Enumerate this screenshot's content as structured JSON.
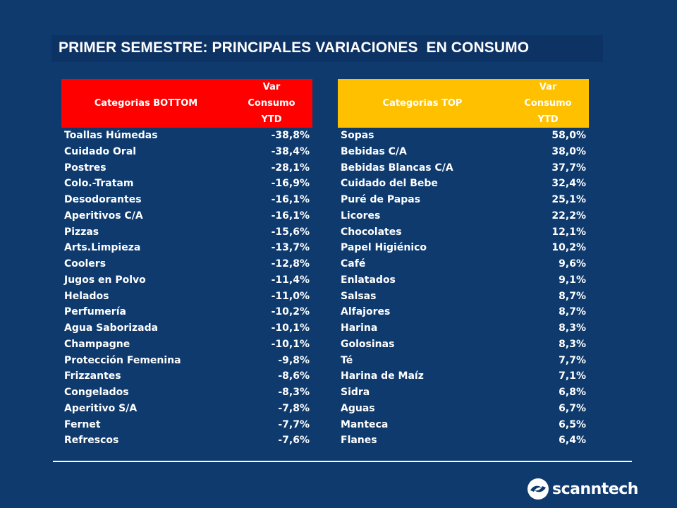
{
  "title": "PRIMER SEMESTRE: PRINCIPALES VARIACIONES  EN CONSUMO",
  "colors": {
    "background": "#0e3a6e",
    "bottom_header": "#ff0000",
    "top_header": "#ffc000"
  },
  "bottom": {
    "header_name": "Categorias BOTTOM",
    "header_var": [
      "Var",
      "Consumo",
      "YTD"
    ],
    "rows": [
      {
        "name": "Toallas Húmedas",
        "value": "-38,8%"
      },
      {
        "name": "Cuidado Oral",
        "value": "-38,4%"
      },
      {
        "name": "Postres",
        "value": "-28,1%"
      },
      {
        "name": "Colo.-Tratam",
        "value": "-16,9%"
      },
      {
        "name": "Desodorantes",
        "value": "-16,1%"
      },
      {
        "name": "Aperitivos C/A",
        "value": "-16,1%"
      },
      {
        "name": "Pizzas",
        "value": "-15,6%"
      },
      {
        "name": "Arts.Limpieza",
        "value": "-13,7%"
      },
      {
        "name": "Coolers",
        "value": "-12,8%"
      },
      {
        "name": "Jugos en Polvo",
        "value": "-11,4%"
      },
      {
        "name": "Helados",
        "value": "-11,0%"
      },
      {
        "name": "Perfumería",
        "value": "-10,2%"
      },
      {
        "name": "Agua Saborizada",
        "value": "-10,1%"
      },
      {
        "name": "Champagne",
        "value": "-10,1%"
      },
      {
        "name": "Protección Femenina",
        "value": "-9,8%"
      },
      {
        "name": "Frizzantes",
        "value": "-8,6%"
      },
      {
        "name": "Congelados",
        "value": "-8,3%"
      },
      {
        "name": "Aperitivo S/A",
        "value": "-7,8%"
      },
      {
        "name": "Fernet",
        "value": "-7,7%"
      },
      {
        "name": "Refrescos",
        "value": "-7,6%"
      }
    ]
  },
  "top": {
    "header_name": "Categorias TOP",
    "header_var": [
      "Var",
      "Consumo",
      "YTD"
    ],
    "rows": [
      {
        "name": "Sopas",
        "value": "58,0%"
      },
      {
        "name": "Bebidas C/A",
        "value": "38,0%"
      },
      {
        "name": "Bebidas Blancas C/A",
        "value": "37,7%"
      },
      {
        "name": "Cuidado del Bebe",
        "value": "32,4%"
      },
      {
        "name": "Puré de Papas",
        "value": "25,1%"
      },
      {
        "name": "Licores",
        "value": "22,2%"
      },
      {
        "name": "Chocolates",
        "value": "12,1%"
      },
      {
        "name": "Papel Higiénico",
        "value": "10,2%"
      },
      {
        "name": "Café",
        "value": "9,6%"
      },
      {
        "name": "Enlatados",
        "value": "9,1%"
      },
      {
        "name": "Salsas",
        "value": "8,7%"
      },
      {
        "name": "Alfajores",
        "value": "8,7%"
      },
      {
        "name": "Harina",
        "value": "8,3%"
      },
      {
        "name": "Golosinas",
        "value": "8,3%"
      },
      {
        "name": "Té",
        "value": "7,7%"
      },
      {
        "name": "Harina de Maíz",
        "value": "7,1%"
      },
      {
        "name": "Sidra",
        "value": "6,8%"
      },
      {
        "name": "Aguas",
        "value": "6,7%"
      },
      {
        "name": "Manteca",
        "value": "6,5%"
      },
      {
        "name": "Flanes",
        "value": "6,4%"
      }
    ]
  },
  "logo": {
    "text": "scanntech",
    "icon": "scanntech-swirl-icon"
  }
}
